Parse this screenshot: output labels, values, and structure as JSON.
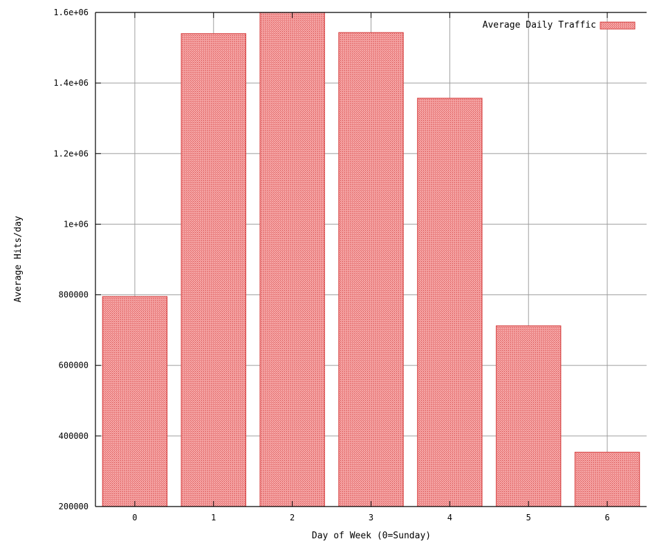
{
  "chart_data": {
    "type": "bar",
    "xlabel": "Day of Week (0=Sunday)",
    "ylabel": "Average Hits/day",
    "categories": [
      "0",
      "1",
      "2",
      "3",
      "4",
      "5",
      "6"
    ],
    "series": [
      {
        "name": "Average Daily Traffic",
        "values": [
          795000,
          1540000,
          1600000,
          1543000,
          1357000,
          712000,
          354000
        ]
      }
    ],
    "ylim": [
      200000,
      1600000
    ],
    "yticks": [
      200000,
      400000,
      600000,
      800000,
      1000000,
      1200000,
      1400000,
      1600000
    ],
    "ytick_labels": [
      "200000",
      "400000",
      "600000",
      "800000",
      "1e+06",
      "1.2e+06",
      "1.4e+06",
      "1.6e+06"
    ],
    "grid": true,
    "legend_position": "top-right",
    "colors": {
      "bar_fill": "#ef8e8e",
      "bar_edge": "#d43a3a",
      "grid": "#9e9e9e",
      "axis": "#000000",
      "text": "#000000"
    }
  }
}
